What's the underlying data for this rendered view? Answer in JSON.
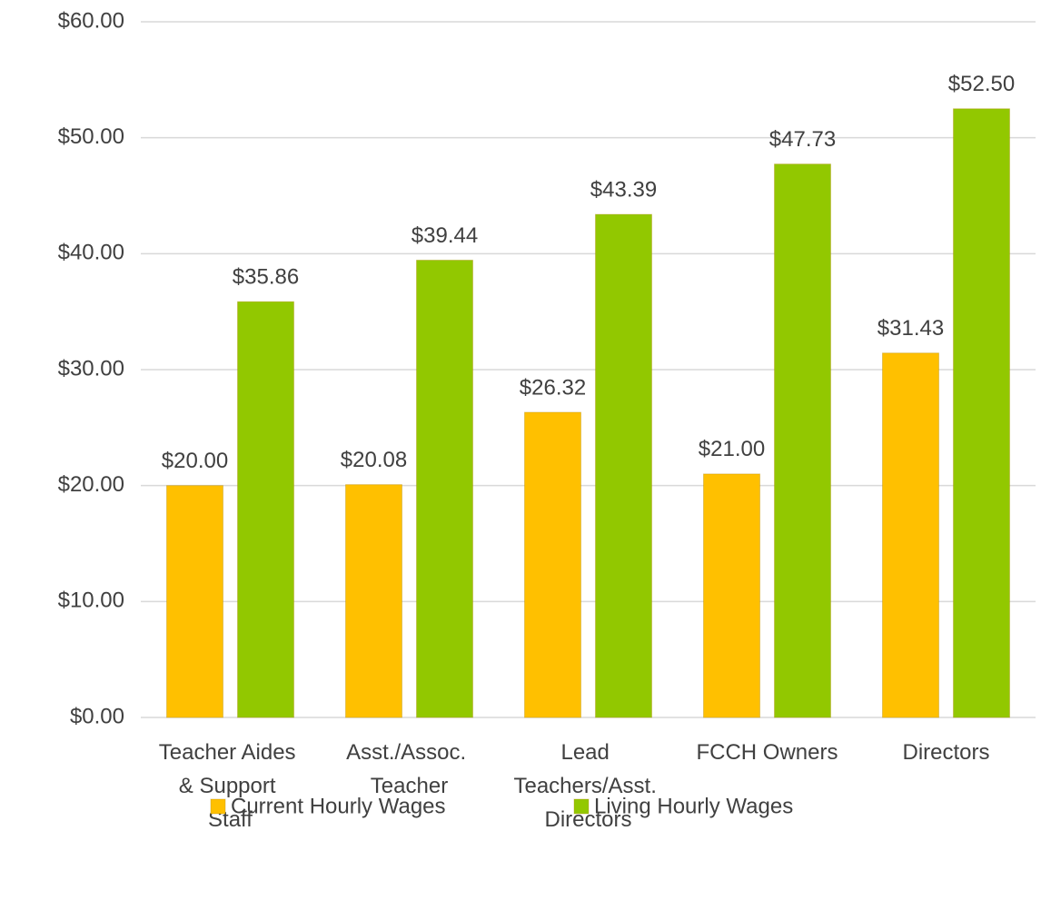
{
  "chart_data": {
    "type": "bar",
    "categories": [
      "Teacher Aides & Support Staff",
      "Asst./Assoc. Teacher",
      "Lead Teachers/Asst. Directors",
      "FCCH Owners",
      "Directors"
    ],
    "series": [
      {
        "name": "Current Hourly Wages",
        "color": "#ffc000",
        "values": [
          20.0,
          20.08,
          26.32,
          21.0,
          31.43
        ],
        "value_labels": [
          "$20.00",
          "$20.08",
          "$26.32",
          "$21.00",
          "$31.43"
        ]
      },
      {
        "name": "Living Hourly Wages",
        "color": "#92c800",
        "values": [
          35.86,
          39.44,
          43.39,
          47.73,
          52.5
        ],
        "value_labels": [
          "$35.86",
          "$39.44",
          "$43.39",
          "$47.73",
          "$52.50"
        ]
      }
    ],
    "ylim": [
      0,
      60
    ],
    "yticks": [
      {
        "value": 0,
        "label": "$0.00"
      },
      {
        "value": 10,
        "label": "$10.00"
      },
      {
        "value": 20,
        "label": "$20.00"
      },
      {
        "value": 30,
        "label": "$30.00"
      },
      {
        "value": 40,
        "label": "$40.00"
      },
      {
        "value": 50,
        "label": "$50.00"
      },
      {
        "value": 60,
        "label": "$60.00"
      }
    ],
    "grid": true,
    "legend": "bottom"
  }
}
